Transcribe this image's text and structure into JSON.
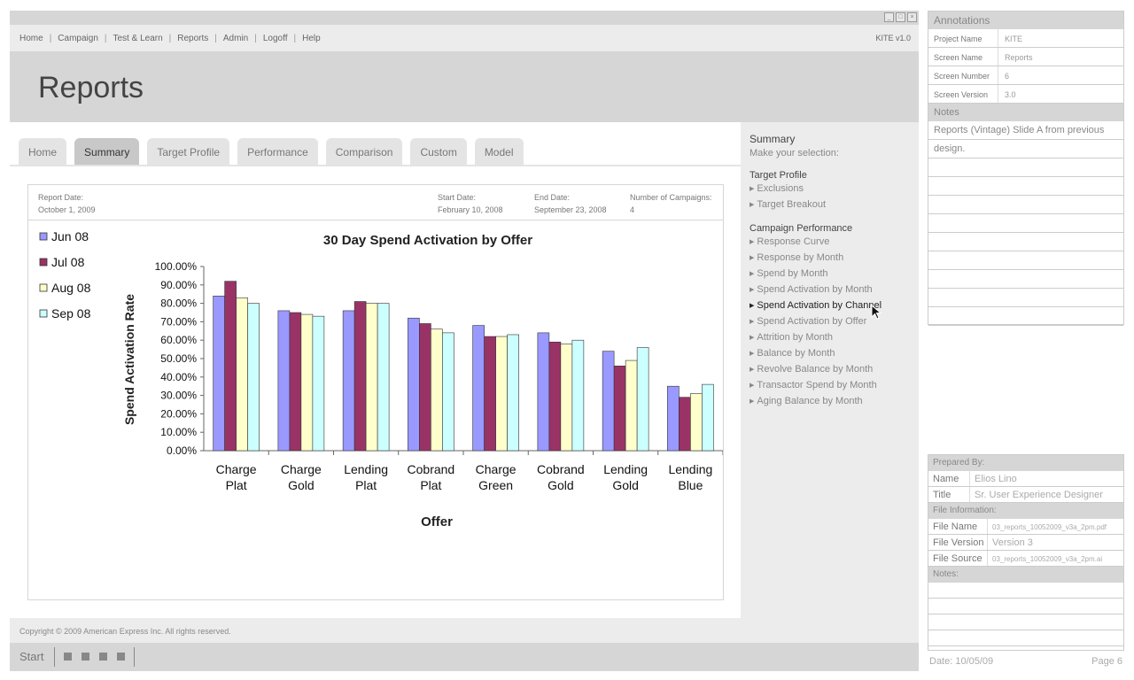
{
  "window": {
    "controls": [
      "_",
      "□",
      "×"
    ]
  },
  "topnav": {
    "links": [
      "Home",
      "Campaign",
      "Test & Learn",
      "Reports",
      "Admin",
      "Logoff",
      "Help"
    ],
    "version": "KITE v1.0"
  },
  "page_title": "Reports",
  "tabs": [
    {
      "label": "Home",
      "active": false
    },
    {
      "label": "Summary",
      "active": true
    },
    {
      "label": "Target Profile",
      "active": false
    },
    {
      "label": "Performance",
      "active": false
    },
    {
      "label": "Comparison",
      "active": false
    },
    {
      "label": "Custom",
      "active": false
    },
    {
      "label": "Model",
      "active": false
    }
  ],
  "report_info": {
    "report_date_label": "Report Date:",
    "report_date": "October 1, 2009",
    "start_date_label": "Start Date:",
    "start_date": "February 10, 2008",
    "end_date_label": "End Date:",
    "end_date": "September 23, 2008",
    "campaigns_label": "Number of Campaigns:",
    "campaigns": "4"
  },
  "chart_data": {
    "type": "bar",
    "title": "30 Day Spend Activation by Offer",
    "xlabel": "Offer",
    "ylabel": "Spend Activation Rate",
    "ylim": [
      0,
      100
    ],
    "yticks": [
      "0.00%",
      "10.00%",
      "20.00%",
      "30.00%",
      "40.00%",
      "50.00%",
      "60.00%",
      "70.00%",
      "80.00%",
      "90.00%",
      "100.00%"
    ],
    "categories": [
      [
        "Charge",
        "Plat"
      ],
      [
        "Charge",
        "Gold"
      ],
      [
        "Lending",
        "Plat"
      ],
      [
        "Cobrand",
        "Plat"
      ],
      [
        "Charge",
        "Green"
      ],
      [
        "Cobrand",
        "Gold"
      ],
      [
        "Lending",
        "Gold"
      ],
      [
        "Lending",
        "Blue"
      ]
    ],
    "series": [
      {
        "name": "Jun 08",
        "color": "#9999ff",
        "values": [
          84,
          76,
          76,
          72,
          68,
          64,
          54,
          35
        ]
      },
      {
        "name": "Jul 08",
        "color": "#993366",
        "values": [
          92,
          75,
          81,
          69,
          62,
          59,
          46,
          29
        ]
      },
      {
        "name": "Aug 08",
        "color": "#ffffcc",
        "values": [
          83,
          74,
          80,
          66,
          62,
          58,
          49,
          31
        ]
      },
      {
        "name": "Sep 08",
        "color": "#ccffff",
        "values": [
          80,
          73,
          80,
          64,
          63,
          60,
          56,
          36
        ]
      }
    ],
    "legend_position": "left",
    "grid": false
  },
  "sidepanel": {
    "title": "Summary",
    "subtitle": "Make your selection:",
    "sections": [
      {
        "title": "Target Profile",
        "items": [
          "Exclusions",
          "Target Breakout"
        ]
      },
      {
        "title": "Campaign Performance",
        "items": [
          "Response Curve",
          "Response by Month",
          "Spend by Month",
          "Spend Activation by Month",
          "Spend Activation by Channel",
          "Spend Activation by Offer",
          "Attrition by Month",
          "Balance by Month",
          "Revolve Balance by Month",
          "Transactor Spend by Month",
          "Aging Balance by Month"
        ]
      }
    ],
    "highlighted": "Spend Activation by Channel"
  },
  "footer": {
    "copyright": "Copyright © 2009 American Express Inc. All rights reserved."
  },
  "taskbar": {
    "start": "Start"
  },
  "annotations": {
    "title": "Annotations",
    "rows": [
      {
        "k": "Project Name",
        "v": "KITE"
      },
      {
        "k": "Screen Name",
        "v": "Reports"
      },
      {
        "k": "Screen Number",
        "v": "6"
      },
      {
        "k": "Screen Version",
        "v": "3.0"
      }
    ],
    "notes_label": "Notes",
    "notes": "Reports (Vintage) Slide A from previous design."
  },
  "prepared": {
    "label": "Prepared By:",
    "name_k": "Name",
    "name_v": "Elios Lino",
    "title_k": "Title",
    "title_v": "Sr. User Experience Designer",
    "file_label": "File Information:",
    "fname_k": "File Name",
    "fname_v": "03_reports_10052009_v3a_2pm.pdf",
    "fver_k": "File Version",
    "fver_v": "Version 3",
    "fsrc_k": "File Source",
    "fsrc_v": "03_reports_10052009_v3a_2pm.ai",
    "notes_label": "Notes:"
  },
  "page_footer": {
    "date": "Date: 10/05/09",
    "page": "Page   6"
  }
}
